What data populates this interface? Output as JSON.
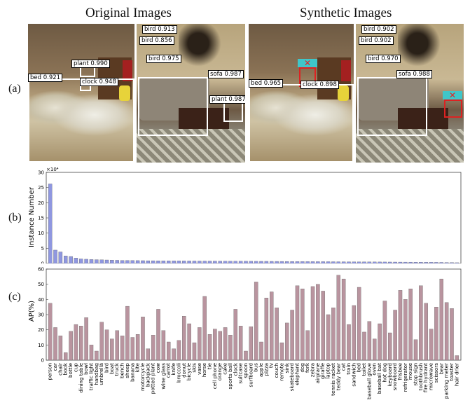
{
  "headers": {
    "original": "Original Images",
    "synthetic": "Synthetic Images"
  },
  "row_labels": {
    "a": "(a)",
    "b": "(b)",
    "c": "(c)"
  },
  "detections": {
    "orig_left": [
      {
        "label": "bed 0.921"
      },
      {
        "label": "plant 0.990"
      },
      {
        "label": "clock 0.948"
      }
    ],
    "orig_right": [
      {
        "label": "bird 0.913"
      },
      {
        "label": "bird 0.856"
      },
      {
        "label": "bird 0.975"
      },
      {
        "label": "sofa 0.987"
      },
      {
        "label": "plant 0.987"
      }
    ],
    "syn_left": [
      {
        "label": "bed 0.965"
      },
      {
        "label": "clock 0.898"
      }
    ],
    "syn_right": [
      {
        "label": "bird 0.902"
      },
      {
        "label": "bird 0.902"
      },
      {
        "label": "bird 0.970"
      },
      {
        "label": "sofa 0.988"
      }
    ],
    "x_glyph": "✕"
  },
  "chart_data": [
    {
      "type": "bar",
      "ylabel": "Instance Number",
      "scale_label": "×10⁴",
      "ylim": [
        0,
        30
      ],
      "yticks": [
        "0",
        "5",
        "10",
        "15",
        "20",
        "25",
        "30"
      ],
      "values": [
        26.2,
        4.4,
        3.8,
        2.5,
        2.3,
        1.8,
        1.5,
        1.4,
        1.3,
        1.25,
        1.2,
        1.15,
        1.1,
        1.05,
        1.0,
        1.0,
        0.98,
        0.95,
        0.93,
        0.9,
        0.9,
        0.88,
        0.87,
        0.86,
        0.85,
        0.84,
        0.83,
        0.82,
        0.81,
        0.8,
        0.8,
        0.79,
        0.78,
        0.77,
        0.76,
        0.75,
        0.75,
        0.74,
        0.73,
        0.72,
        0.71,
        0.7,
        0.7,
        0.69,
        0.68,
        0.67,
        0.66,
        0.65,
        0.64,
        0.63,
        0.62,
        0.61,
        0.6,
        0.6,
        0.59,
        0.58,
        0.57,
        0.56,
        0.55,
        0.54,
        0.53,
        0.52,
        0.51,
        0.5,
        0.49,
        0.48,
        0.47,
        0.46,
        0.45,
        0.44,
        0.43,
        0.42,
        0.41,
        0.4,
        0.39,
        0.37,
        0.35,
        0.32,
        0.3,
        0.25
      ],
      "color": "#8f97e0"
    },
    {
      "type": "bar",
      "ylabel": "AP(%)",
      "ylim": [
        0,
        60
      ],
      "yticks": [
        "0",
        "10",
        "20",
        "30",
        "40",
        "50",
        "60"
      ],
      "categories": [
        "person",
        "car",
        "chair",
        "book",
        "bottle",
        "cup",
        "dining table",
        "bowl",
        "traffic light",
        "handbag",
        "umbrella",
        "bird",
        "boat",
        "truck",
        "bench",
        "sheep",
        "banana",
        "kite",
        "motorcycle",
        "backpack",
        "potted plant",
        "cow",
        "wine glass",
        "carrot",
        "knife",
        "broccoli",
        "donut",
        "bicycle",
        "skis",
        "vase",
        "horse",
        "tie",
        "cell phone",
        "orange",
        "cake",
        "sports ball",
        "clock",
        "suitcase",
        "spoon",
        "surfboard",
        "bus",
        "apple",
        "pizza",
        "tv",
        "couch",
        "remote",
        "sink",
        "skateboard",
        "elephant",
        "dog",
        "fork",
        "zebra",
        "airplane",
        "giraffe",
        "laptop",
        "tennis racket",
        "teddy bear",
        "cat",
        "train",
        "sandwich",
        "bed",
        "toilet",
        "baseball glove",
        "oven",
        "baseball bat",
        "hot dog",
        "keyboard",
        "snowboard",
        "frisbee",
        "refrigerator",
        "mouse",
        "stop sign",
        "toothbrush",
        "fire hydrant",
        "microwave",
        "scissors",
        "bear",
        "parking meter",
        "toaster",
        "hair drier"
      ],
      "values": [
        37.5,
        21.5,
        16,
        5,
        19,
        23.5,
        22.5,
        28,
        10,
        6,
        25,
        20,
        14,
        19.5,
        16,
        35.5,
        15,
        17,
        28.5,
        7.5,
        16.5,
        33.5,
        19.5,
        12,
        7.5,
        13,
        29,
        24,
        11.5,
        21.5,
        42,
        17,
        20.5,
        19,
        21.5,
        16.5,
        33.5,
        22.5,
        6,
        22,
        51.5,
        12,
        41,
        45,
        34.5,
        11.5,
        24.5,
        33,
        49,
        47,
        19.5,
        48.5,
        50,
        45.5,
        30,
        34.5,
        56,
        53.5,
        23.5,
        36,
        48,
        18.5,
        25.5,
        14,
        24,
        39,
        18,
        33,
        46,
        40,
        47,
        13.5,
        49,
        37.5,
        20.5,
        35,
        53.5,
        38,
        34,
        3
      ],
      "color": "#b9949f"
    }
  ]
}
